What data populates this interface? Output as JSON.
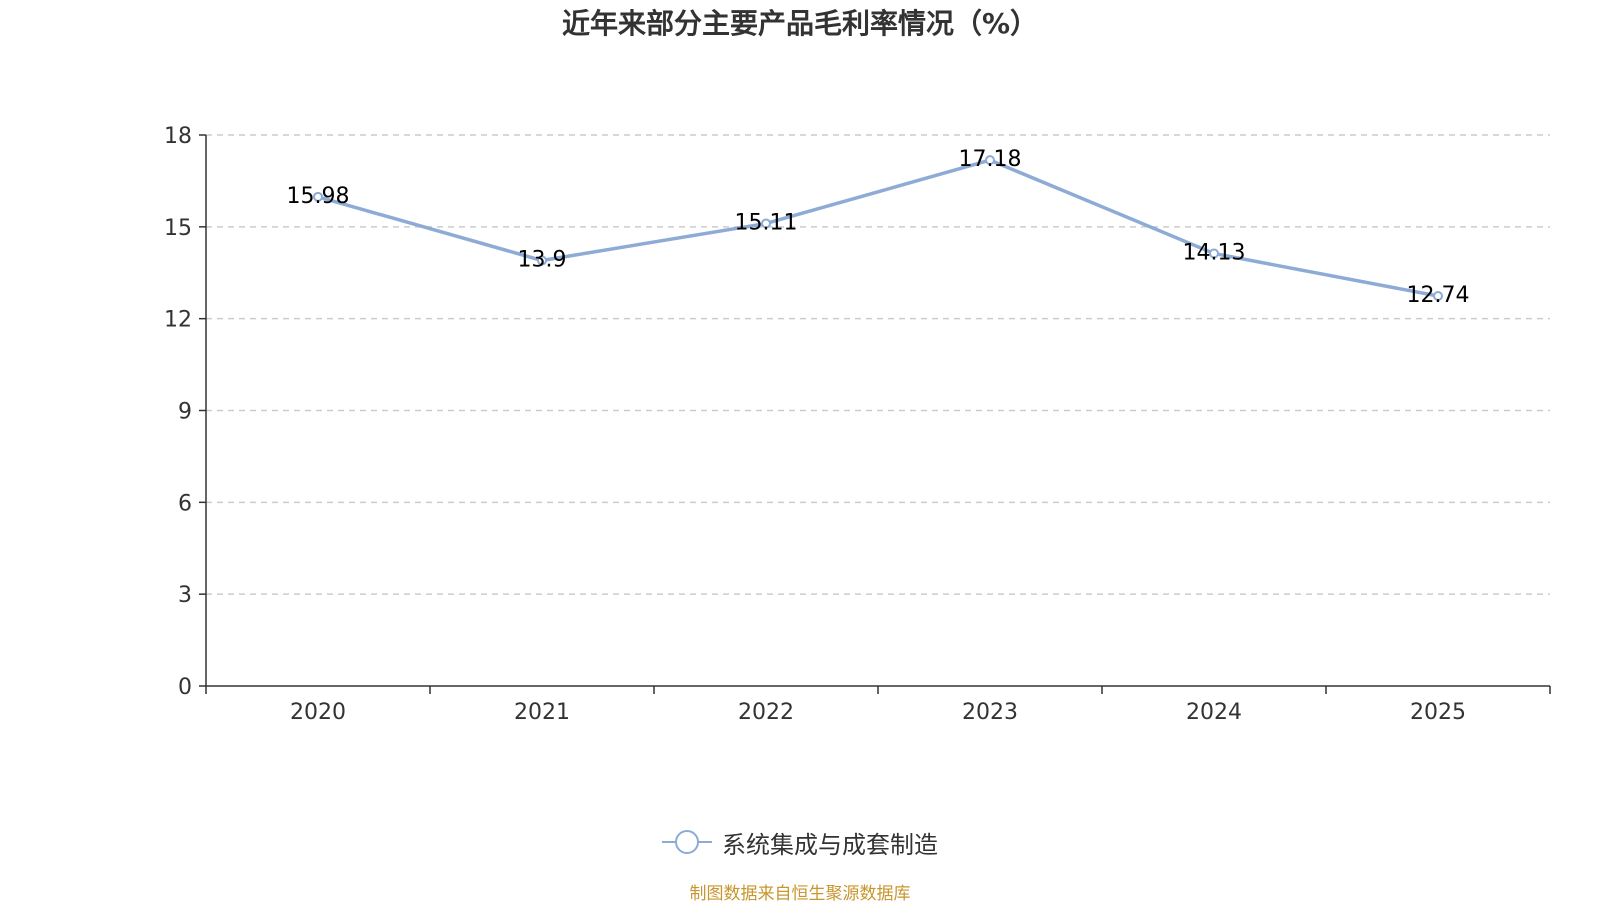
{
  "chart_data": {
    "type": "line",
    "title": "近年来部分主要产品毛利率情况（%）",
    "categories": [
      "2020",
      "2021",
      "2022",
      "2023",
      "2024",
      "2025"
    ],
    "series": [
      {
        "name": "系统集成与成套制造",
        "values": [
          15.98,
          13.9,
          15.11,
          17.18,
          14.13,
          12.74
        ],
        "data_labels": [
          "15.98",
          "13.9",
          "15.11",
          "17.18",
          "14.13",
          "12.74"
        ],
        "color": "#8eabd6"
      }
    ],
    "ylim": [
      0,
      18
    ],
    "yticks": [
      0,
      3,
      6,
      9,
      12,
      15,
      18
    ],
    "ytick_labels": [
      "0",
      "3",
      "6",
      "9",
      "12",
      "15",
      "18"
    ],
    "grid": true,
    "legend_position": "bottom-center",
    "xlabel": "",
    "ylabel": ""
  },
  "source_note": "制图数据来自恒生聚源数据库",
  "colors": {
    "line": "#8eabd6",
    "grid": "#cccccc",
    "axis": "#333333",
    "source_note": "#c8962d"
  }
}
